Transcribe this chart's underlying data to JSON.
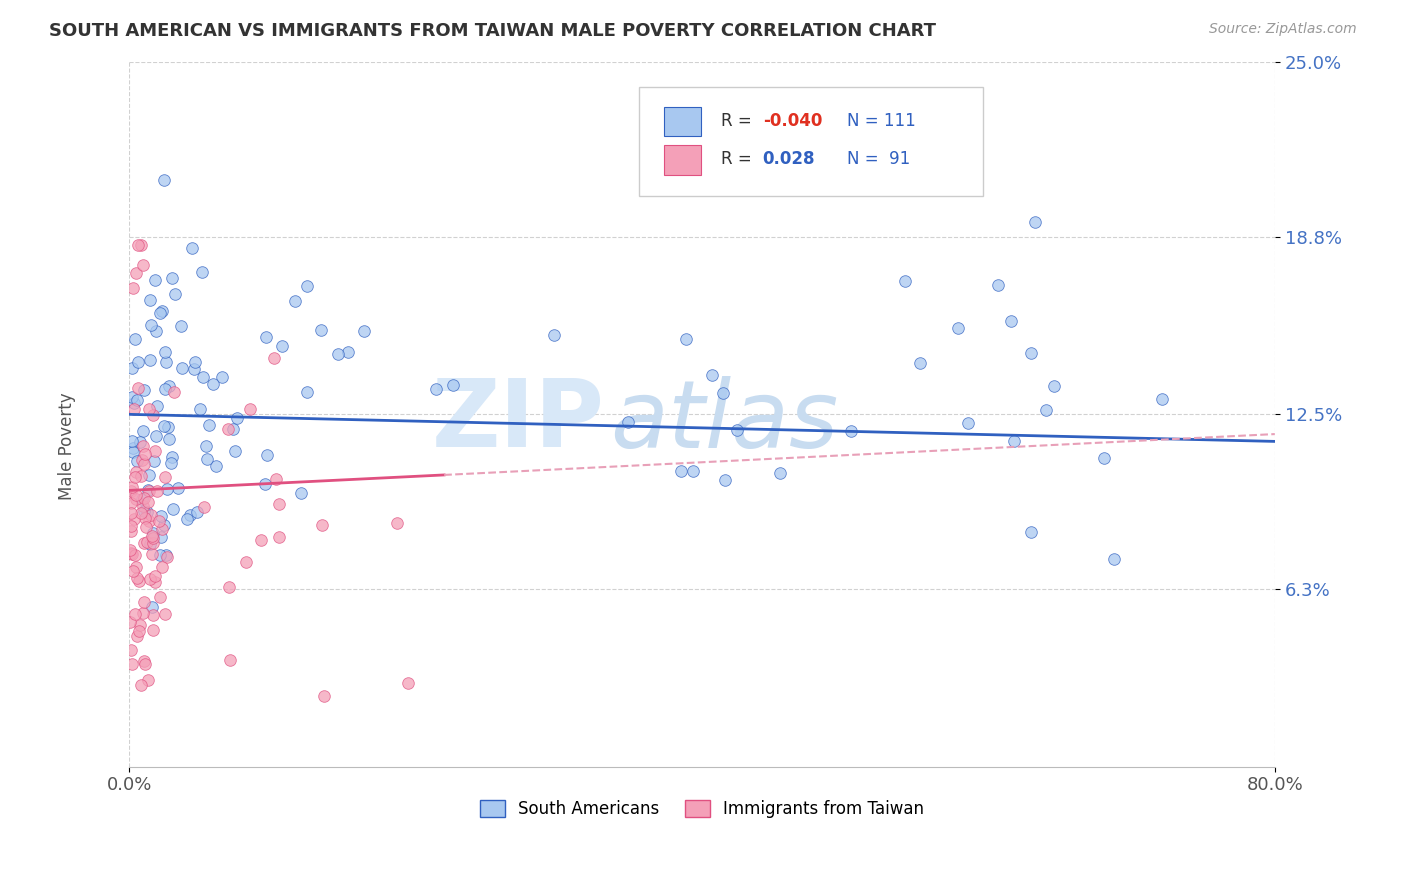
{
  "title": "SOUTH AMERICAN VS IMMIGRANTS FROM TAIWAN MALE POVERTY CORRELATION CHART",
  "source": "Source: ZipAtlas.com",
  "ylabel": "Male Poverty",
  "xlim": [
    0,
    0.8
  ],
  "ylim": [
    0,
    0.25
  ],
  "yticks": [
    0.063,
    0.125,
    0.188,
    0.25
  ],
  "ytick_labels": [
    "6.3%",
    "12.5%",
    "18.8%",
    "25.0%"
  ],
  "xtick_labels": [
    "0.0%",
    "80.0%"
  ],
  "color_blue": "#A8C8F0",
  "color_pink": "#F4A0B8",
  "line_blue": "#3060C0",
  "line_pink": "#E05080",
  "line_dashed": "#E8A0B8",
  "watermark_color": "#D8E8F8"
}
